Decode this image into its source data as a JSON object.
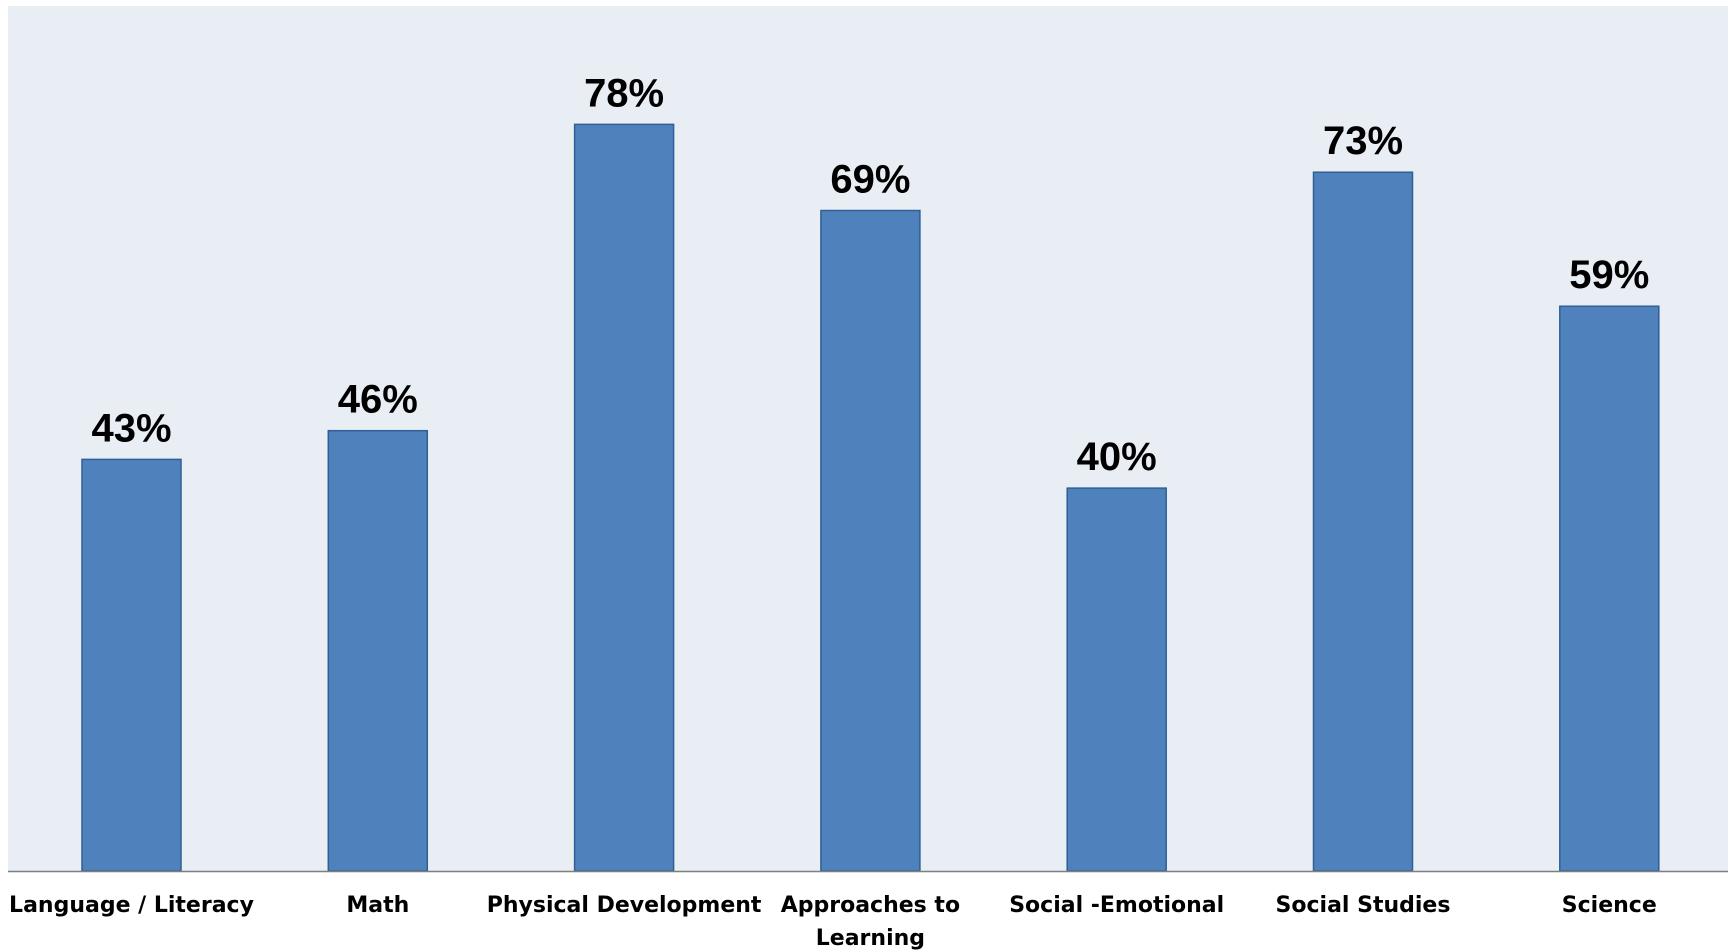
{
  "chart_data": {
    "type": "bar",
    "categories": [
      [
        "Language / Literacy"
      ],
      [
        "Math"
      ],
      [
        "Physical Development"
      ],
      [
        "Approaches to",
        "Learning"
      ],
      [
        "Social -Emotional"
      ],
      [
        "Social Studies"
      ],
      [
        "Science"
      ]
    ],
    "values": [
      43,
      46,
      78,
      69,
      40,
      73,
      59
    ],
    "value_labels": [
      "43%",
      "46%",
      "78%",
      "69%",
      "40%",
      "73%",
      "59%"
    ],
    "unit": "%",
    "ylim": [
      0,
      90
    ],
    "grid": false,
    "legend": "none",
    "colors": {
      "plot_background": "#e9eef5",
      "bar_fill": "#4f81bd",
      "bar_stroke": "#2f5f95",
      "axis_line": "#7f7f7f"
    }
  }
}
